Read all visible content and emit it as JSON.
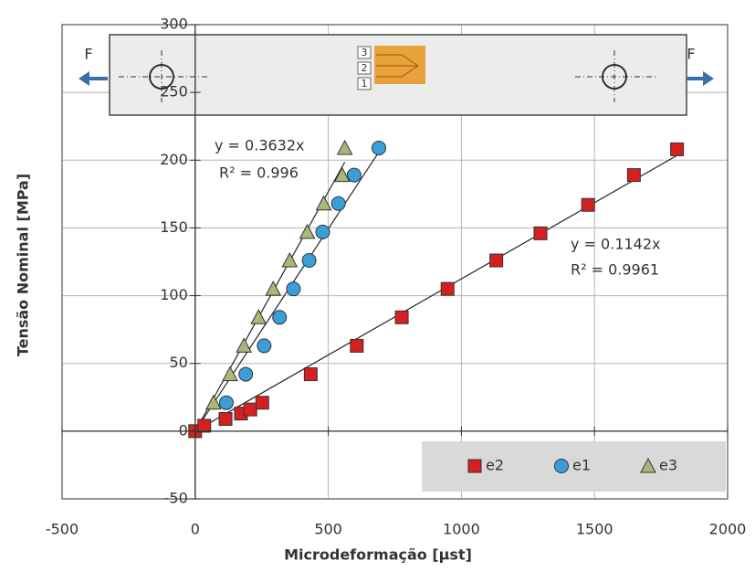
{
  "chart_data": {
    "type": "scatter",
    "x_label": "Microdeformação [µst]",
    "y_label": "Tensão Nominal [MPa]",
    "xlim": [
      -500,
      2000
    ],
    "xticks": [
      -500,
      0,
      500,
      1000,
      1500,
      2000
    ],
    "ylim": [
      -50,
      300
    ],
    "yticks": [
      -50,
      0,
      50,
      100,
      150,
      200,
      250,
      300
    ],
    "grid": true,
    "legend": "bottom-right",
    "series": [
      {
        "name": "e2",
        "color": "#d42020",
        "marker": "square",
        "x": [
          0,
          34,
          114,
          172,
          207,
          252,
          434,
          607,
          776,
          948,
          1131,
          1297,
          1476,
          1648,
          1810
        ],
        "values": [
          0,
          4,
          9,
          13,
          16,
          21,
          42,
          63,
          84,
          105,
          126,
          146,
          167,
          189,
          208
        ]
      },
      {
        "name": "e1",
        "color": "#3a9fd8",
        "marker": "circle",
        "x": [
          117,
          190,
          259,
          317,
          369,
          428,
          479,
          538,
          597,
          690
        ],
        "values": [
          21,
          42,
          63,
          84,
          105,
          126,
          147,
          168,
          189,
          209
        ]
      },
      {
        "name": "e3",
        "color": "#a9b879",
        "marker": "triangle",
        "x": [
          69,
          131,
          183,
          238,
          293,
          355,
          421,
          483,
          552,
          562
        ],
        "values": [
          21,
          42,
          63,
          84,
          105,
          126,
          147,
          168,
          189,
          209
        ]
      }
    ],
    "annotations": [
      {
        "text": "y = 0.3632x",
        "color": "#333333"
      },
      {
        "text": "R² = 0.996",
        "color": "#333333"
      },
      {
        "text": "y = 0.1142x",
        "color": "#c0304a"
      },
      {
        "text": "R² = 0.9961",
        "color": "#c0304a"
      }
    ],
    "inset": {
      "force_labels": [
        "F",
        "F"
      ],
      "gauge_labels": [
        "3",
        "2",
        "1"
      ]
    }
  }
}
